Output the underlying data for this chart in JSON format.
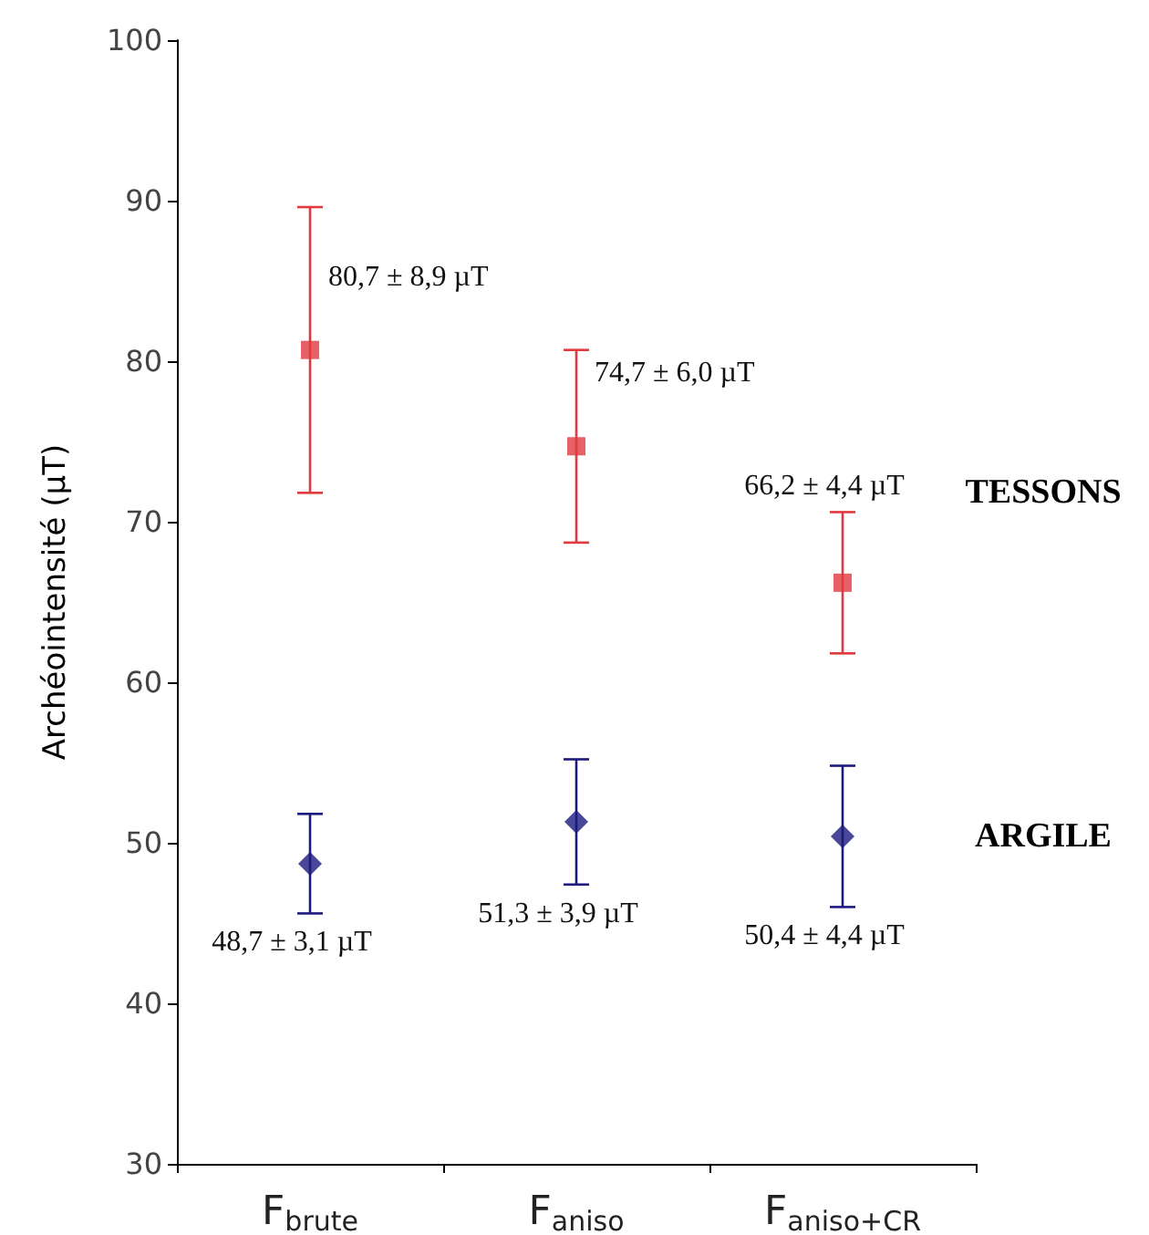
{
  "chart_data": {
    "type": "scatter",
    "ylabel": "Archéointensité (µT)",
    "categories": [
      "F$_{brute}$",
      "F$_{aniso}$",
      "F$_{aniso+CR}$"
    ],
    "ylim": [
      30,
      100
    ],
    "yticks": [
      30,
      40,
      50,
      60,
      70,
      80,
      90,
      100
    ],
    "grid": false,
    "legend": false,
    "series": [
      {
        "name": "TESSONS",
        "color": "#e0393e",
        "marker": "square",
        "values": [
          80.7,
          74.7,
          66.2
        ],
        "errors": [
          8.9,
          6.0,
          4.4
        ],
        "value_labels": [
          "80,7 ± 8,9 µT",
          "74,7 ± 6,0 µT",
          "66,2 ± 4,4 µT"
        ]
      },
      {
        "name": "ARGILE",
        "color": "#1c1a7e",
        "marker": "diamond",
        "values": [
          48.7,
          51.3,
          50.4
        ],
        "errors": [
          3.1,
          3.9,
          4.4
        ],
        "value_labels": [
          "48,7 ± 3,1 µT",
          "51,3 ± 3,9 µT",
          "50,4 ± 4,4 µT"
        ]
      }
    ]
  }
}
